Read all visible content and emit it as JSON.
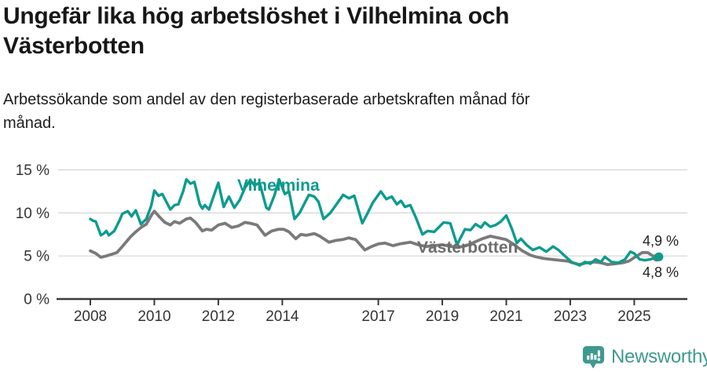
{
  "chart_data": {
    "type": "line",
    "title": "Ungefär lika hög arbetslöshet i Vilhelmina och\nVästerbotten",
    "subtitle": "Arbetssökande som andel av den registerbaserade arbetskraften månad för\nmånad.",
    "unit": "%",
    "ylim": [
      0,
      15
    ],
    "x_range": [
      2007.0,
      2026.2
    ],
    "grid": "horizontal",
    "legend_position": "inline-labels",
    "yticks": [
      {
        "value": 0,
        "label": "0 %"
      },
      {
        "value": 5,
        "label": "5 %"
      },
      {
        "value": 10,
        "label": "10 %"
      },
      {
        "value": 15,
        "label": "15 %"
      }
    ],
    "xticks": [
      {
        "value": 2008,
        "label": "2008"
      },
      {
        "value": 2010,
        "label": "2010"
      },
      {
        "value": 2012,
        "label": "2012"
      },
      {
        "value": 2014,
        "label": "2014"
      },
      {
        "value": 2017,
        "label": "2017"
      },
      {
        "value": 2019,
        "label": "2019"
      },
      {
        "value": 2021,
        "label": "2021"
      },
      {
        "value": 2023,
        "label": "2023"
      },
      {
        "value": 2025,
        "label": "2025"
      }
    ],
    "colors": {
      "grid": "#d9d9d9",
      "axis": "#3a3a3a",
      "tick_text": "#333333"
    },
    "series": [
      {
        "name": "Vilhelmina",
        "color": "#0d9b8e",
        "label_color": "#0d9b8e",
        "end_label": "4,9 %",
        "end_value": 4.9,
        "points": [
          [
            2008.0,
            9.3
          ],
          [
            2008.08,
            9.1
          ],
          [
            2008.17,
            9.0
          ],
          [
            2008.33,
            7.4
          ],
          [
            2008.42,
            7.6
          ],
          [
            2008.5,
            7.9
          ],
          [
            2008.58,
            7.4
          ],
          [
            2008.75,
            7.9
          ],
          [
            2008.92,
            9.2
          ],
          [
            2009.0,
            9.9
          ],
          [
            2009.17,
            10.2
          ],
          [
            2009.29,
            9.6
          ],
          [
            2009.42,
            10.3
          ],
          [
            2009.58,
            8.7
          ],
          [
            2009.75,
            9.3
          ],
          [
            2009.9,
            10.8
          ],
          [
            2010.0,
            12.6
          ],
          [
            2010.13,
            12.0
          ],
          [
            2010.25,
            12.2
          ],
          [
            2010.5,
            10.4
          ],
          [
            2010.63,
            10.9
          ],
          [
            2010.75,
            11.0
          ],
          [
            2010.9,
            12.5
          ],
          [
            2011.0,
            13.9
          ],
          [
            2011.13,
            13.4
          ],
          [
            2011.25,
            13.6
          ],
          [
            2011.42,
            11.0
          ],
          [
            2011.5,
            10.5
          ],
          [
            2011.58,
            10.9
          ],
          [
            2011.71,
            10.4
          ],
          [
            2011.83,
            11.7
          ],
          [
            2012.0,
            13.5
          ],
          [
            2012.17,
            10.7
          ],
          [
            2012.33,
            11.9
          ],
          [
            2012.5,
            10.6
          ],
          [
            2012.67,
            11.5
          ],
          [
            2012.83,
            12.9
          ],
          [
            2013.0,
            13.8
          ],
          [
            2013.13,
            13.2
          ],
          [
            2013.29,
            13.5
          ],
          [
            2013.5,
            10.6
          ],
          [
            2013.58,
            10.4
          ],
          [
            2013.75,
            12.0
          ],
          [
            2013.9,
            13.9
          ],
          [
            2014.08,
            12.2
          ],
          [
            2014.21,
            12.5
          ],
          [
            2014.38,
            9.3
          ],
          [
            2014.54,
            10.0
          ],
          [
            2014.83,
            12.1
          ],
          [
            2015.0,
            11.9
          ],
          [
            2015.13,
            11.3
          ],
          [
            2015.29,
            9.3
          ],
          [
            2015.5,
            10.0
          ],
          [
            2015.75,
            11.3
          ],
          [
            2015.9,
            12.1
          ],
          [
            2016.08,
            11.7
          ],
          [
            2016.25,
            12.0
          ],
          [
            2016.5,
            8.8
          ],
          [
            2016.67,
            10.0
          ],
          [
            2016.83,
            11.2
          ],
          [
            2017.08,
            12.5
          ],
          [
            2017.25,
            11.6
          ],
          [
            2017.42,
            11.9
          ],
          [
            2017.58,
            11.0
          ],
          [
            2017.71,
            11.4
          ],
          [
            2017.83,
            10.7
          ],
          [
            2018.0,
            10.9
          ],
          [
            2018.17,
            9.5
          ],
          [
            2018.38,
            7.5
          ],
          [
            2018.54,
            7.9
          ],
          [
            2018.75,
            7.8
          ],
          [
            2019.04,
            8.9
          ],
          [
            2019.25,
            8.8
          ],
          [
            2019.46,
            6.3
          ],
          [
            2019.71,
            8.1
          ],
          [
            2019.88,
            8.0
          ],
          [
            2020.04,
            8.7
          ],
          [
            2020.21,
            8.3
          ],
          [
            2020.33,
            8.9
          ],
          [
            2020.5,
            8.4
          ],
          [
            2020.67,
            8.6
          ],
          [
            2020.83,
            9.0
          ],
          [
            2021.0,
            9.7
          ],
          [
            2021.17,
            8.2
          ],
          [
            2021.33,
            6.5
          ],
          [
            2021.46,
            7.0
          ],
          [
            2021.63,
            6.3
          ],
          [
            2021.83,
            5.7
          ],
          [
            2022.04,
            6.0
          ],
          [
            2022.25,
            5.5
          ],
          [
            2022.46,
            6.1
          ],
          [
            2022.63,
            5.7
          ],
          [
            2022.83,
            5.0
          ],
          [
            2023.04,
            4.3
          ],
          [
            2023.29,
            3.9
          ],
          [
            2023.46,
            4.3
          ],
          [
            2023.63,
            4.1
          ],
          [
            2023.79,
            4.6
          ],
          [
            2023.96,
            4.3
          ],
          [
            2024.08,
            4.9
          ],
          [
            2024.29,
            4.3
          ],
          [
            2024.5,
            4.2
          ],
          [
            2024.71,
            4.6
          ],
          [
            2024.88,
            5.5
          ],
          [
            2025.0,
            5.3
          ],
          [
            2025.17,
            4.6
          ],
          [
            2025.33,
            4.5
          ],
          [
            2025.5,
            4.6
          ],
          [
            2025.77,
            4.9
          ]
        ]
      },
      {
        "name": "Västerbotten",
        "color": "#7a7a7a",
        "label_color": "#6d6d6d",
        "end_label": "4,8 %",
        "end_value": 4.8,
        "points": [
          [
            2008.0,
            5.6
          ],
          [
            2008.17,
            5.3
          ],
          [
            2008.33,
            4.85
          ],
          [
            2008.5,
            5.0
          ],
          [
            2008.67,
            5.2
          ],
          [
            2008.83,
            5.4
          ],
          [
            2009.0,
            6.1
          ],
          [
            2009.25,
            7.2
          ],
          [
            2009.42,
            7.8
          ],
          [
            2009.58,
            8.3
          ],
          [
            2009.75,
            8.7
          ],
          [
            2009.92,
            9.8
          ],
          [
            2010.0,
            10.2
          ],
          [
            2010.17,
            9.5
          ],
          [
            2010.33,
            8.9
          ],
          [
            2010.5,
            8.6
          ],
          [
            2010.63,
            9.0
          ],
          [
            2010.79,
            8.8
          ],
          [
            2011.0,
            9.3
          ],
          [
            2011.13,
            9.4
          ],
          [
            2011.29,
            8.9
          ],
          [
            2011.5,
            7.9
          ],
          [
            2011.63,
            8.1
          ],
          [
            2011.79,
            8.0
          ],
          [
            2012.0,
            8.6
          ],
          [
            2012.21,
            8.8
          ],
          [
            2012.42,
            8.3
          ],
          [
            2012.63,
            8.5
          ],
          [
            2012.83,
            8.9
          ],
          [
            2013.0,
            8.8
          ],
          [
            2013.21,
            8.6
          ],
          [
            2013.46,
            7.4
          ],
          [
            2013.67,
            7.9
          ],
          [
            2013.88,
            8.1
          ],
          [
            2014.04,
            8.1
          ],
          [
            2014.21,
            7.8
          ],
          [
            2014.42,
            7.0
          ],
          [
            2014.58,
            7.5
          ],
          [
            2014.75,
            7.4
          ],
          [
            2015.0,
            7.6
          ],
          [
            2015.17,
            7.3
          ],
          [
            2015.46,
            6.6
          ],
          [
            2015.67,
            6.8
          ],
          [
            2015.88,
            6.9
          ],
          [
            2016.08,
            7.1
          ],
          [
            2016.29,
            6.9
          ],
          [
            2016.58,
            5.7
          ],
          [
            2016.79,
            6.1
          ],
          [
            2017.0,
            6.4
          ],
          [
            2017.21,
            6.5
          ],
          [
            2017.46,
            6.2
          ],
          [
            2017.67,
            6.4
          ],
          [
            2018.0,
            6.6
          ],
          [
            2018.25,
            6.3
          ],
          [
            2018.5,
            6.1
          ],
          [
            2018.75,
            6.2
          ],
          [
            2019.0,
            6.3
          ],
          [
            2019.29,
            6.1
          ],
          [
            2019.5,
            6.0
          ],
          [
            2019.75,
            6.2
          ],
          [
            2020.0,
            6.6
          ],
          [
            2020.25,
            7.0
          ],
          [
            2020.5,
            7.3
          ],
          [
            2020.75,
            7.1
          ],
          [
            2021.0,
            6.9
          ],
          [
            2021.25,
            6.3
          ],
          [
            2021.5,
            5.6
          ],
          [
            2021.75,
            5.1
          ],
          [
            2021.92,
            4.9
          ],
          [
            2022.17,
            4.7
          ],
          [
            2022.42,
            4.6
          ],
          [
            2022.67,
            4.5
          ],
          [
            2022.92,
            4.4
          ],
          [
            2023.08,
            4.2
          ],
          [
            2023.29,
            4.0
          ],
          [
            2023.5,
            4.2
          ],
          [
            2023.75,
            4.3
          ],
          [
            2023.96,
            4.2
          ],
          [
            2024.17,
            4.0
          ],
          [
            2024.42,
            4.1
          ],
          [
            2024.63,
            4.2
          ],
          [
            2024.83,
            4.4
          ],
          [
            2025.04,
            4.9
          ],
          [
            2025.25,
            5.4
          ],
          [
            2025.42,
            5.4
          ],
          [
            2025.58,
            5.0
          ],
          [
            2025.7,
            4.8
          ]
        ]
      }
    ]
  },
  "footer": {
    "brand": "Newsworthy",
    "brand_color": "#3f998f"
  }
}
